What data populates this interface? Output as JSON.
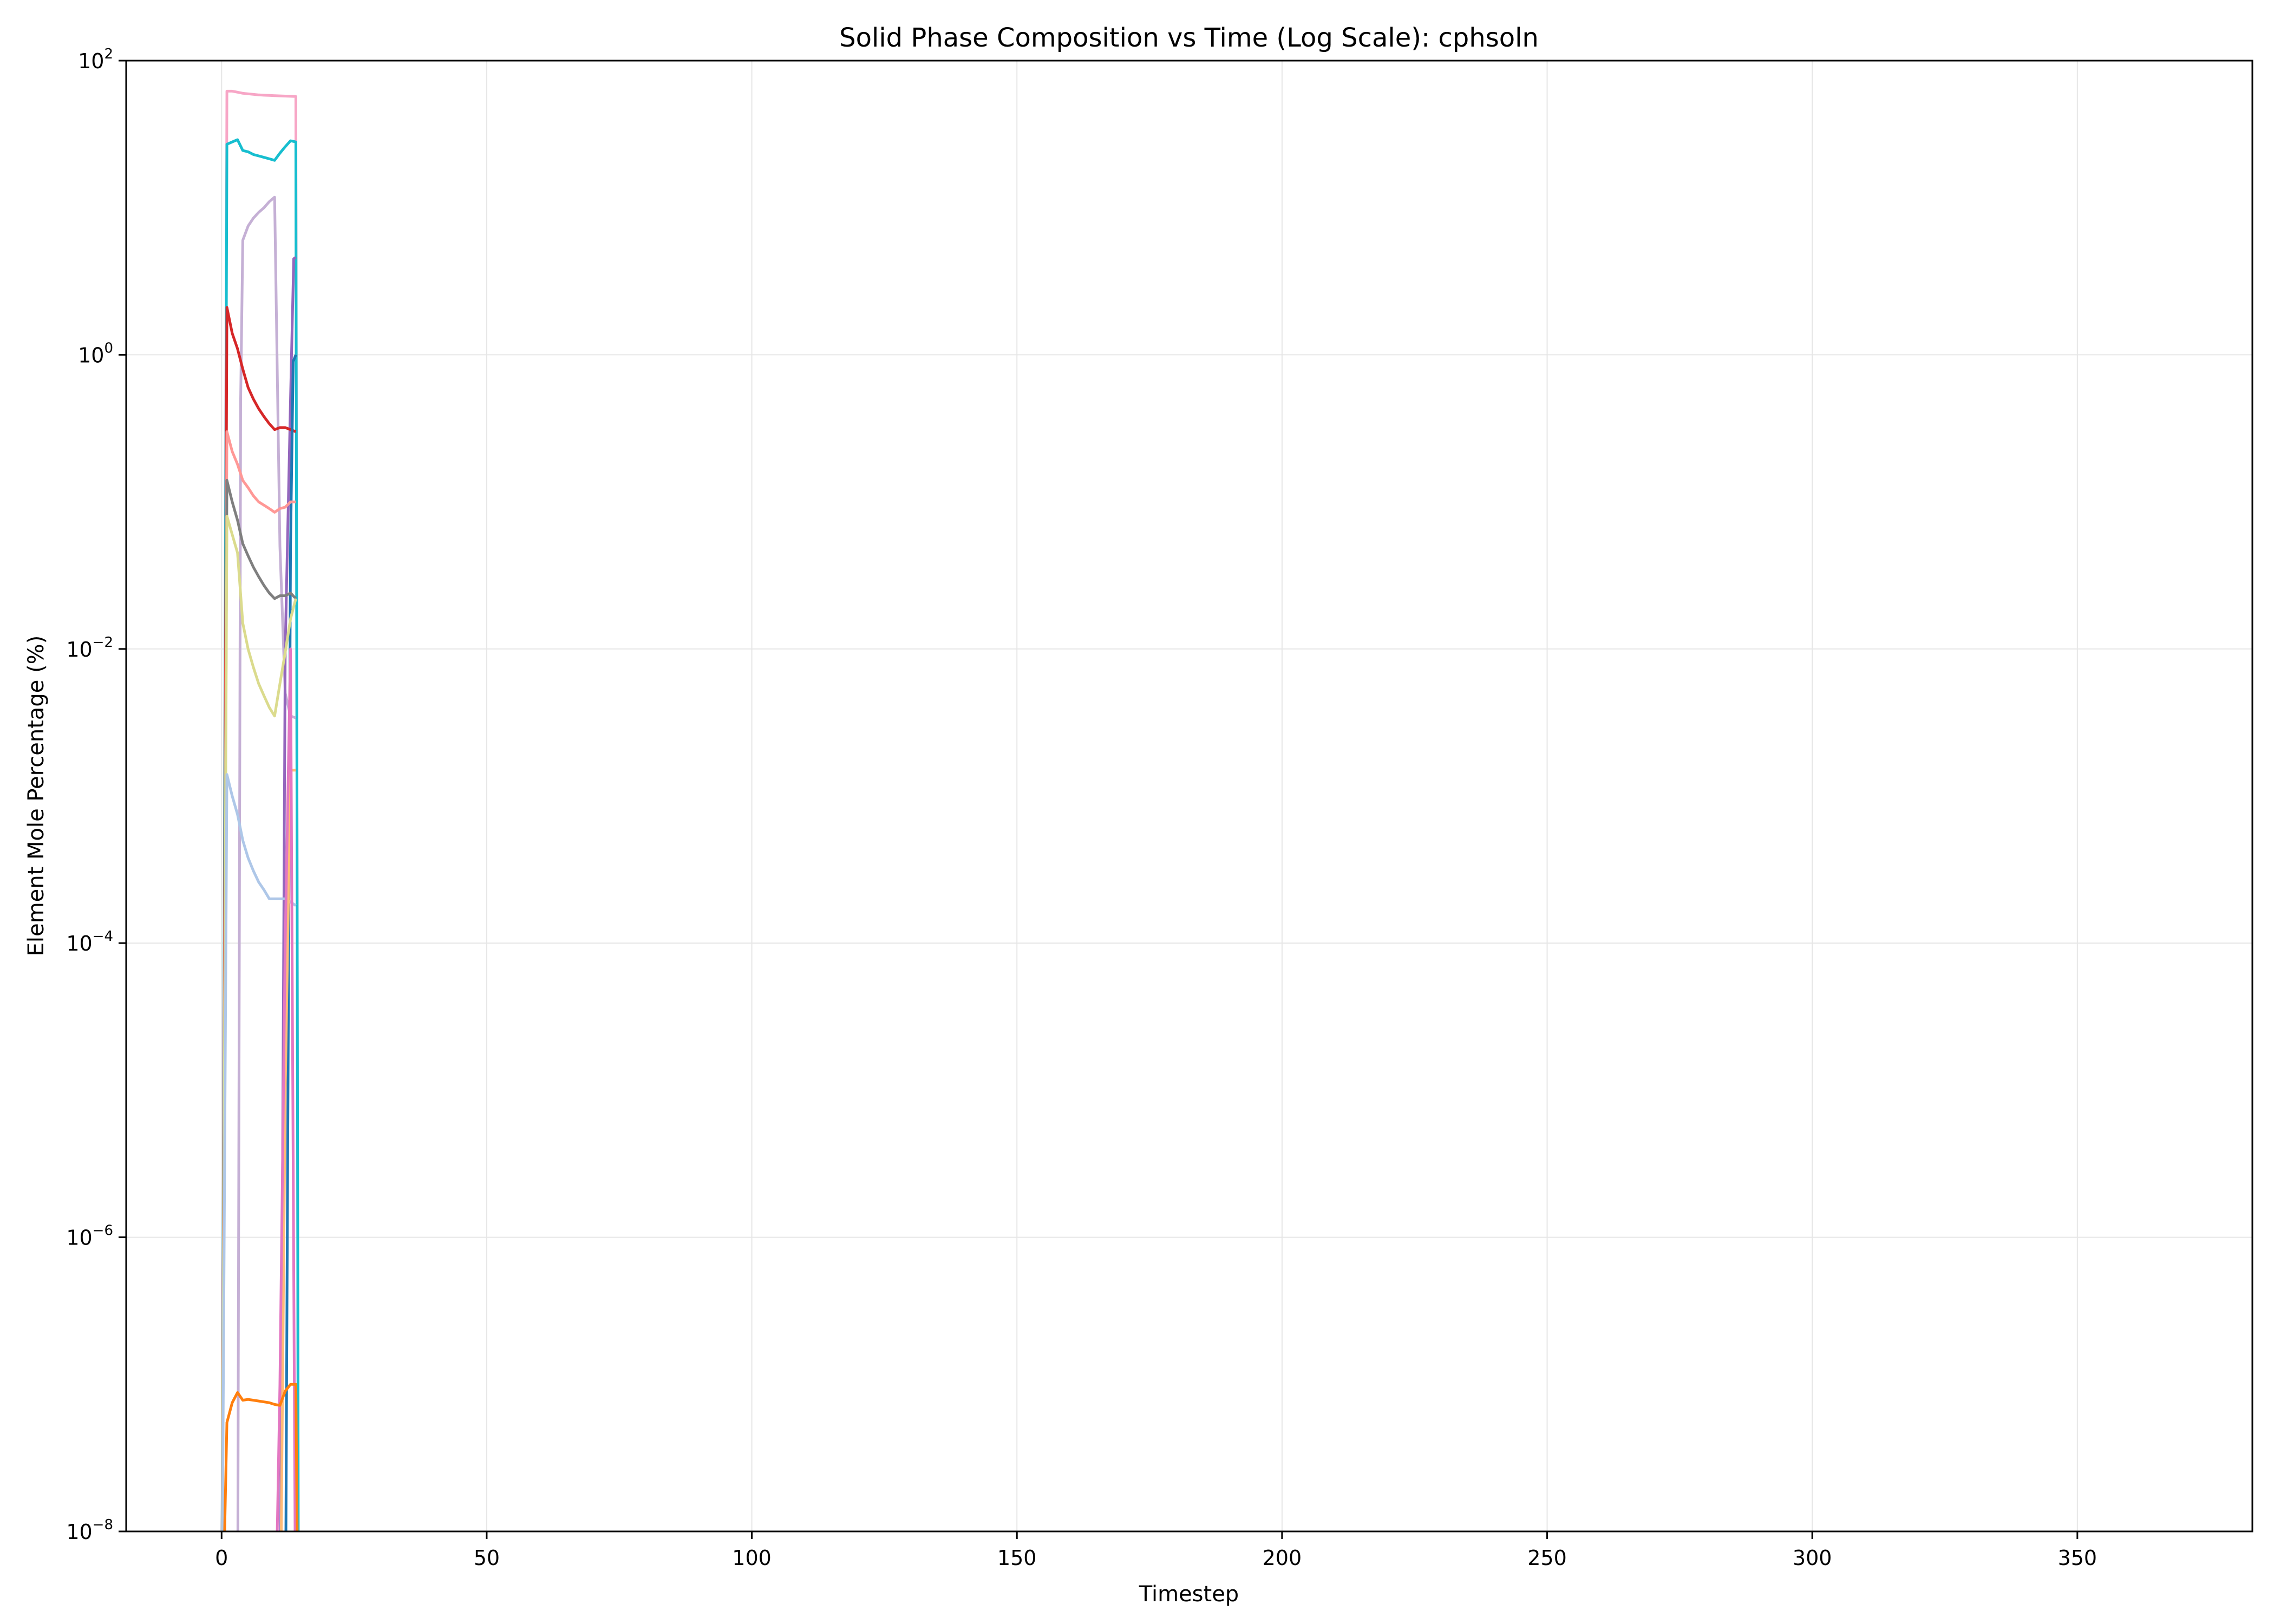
{
  "chart_data": {
    "type": "line",
    "title": "Solid Phase Composition vs Time (Log Scale): cphsoln",
    "xlabel": "Timestep",
    "ylabel": "Element Mole Percentage (%)",
    "xlim": [
      -18,
      383
    ],
    "ylim": [
      1e-08,
      100
    ],
    "yscale": "log",
    "grid": true,
    "x_ticks": [
      0,
      50,
      100,
      150,
      200,
      250,
      300,
      350
    ],
    "y_ticks": [
      -8,
      -6,
      -4,
      -2,
      0,
      2
    ],
    "series": [
      {
        "color": "#f7a6c6",
        "x": [
          0,
          1,
          2,
          3,
          4,
          5,
          6,
          7,
          8,
          9,
          10,
          11,
          12,
          13,
          14,
          14.5
        ],
        "y": [
          1e-09,
          62,
          62,
          61,
          60,
          59.5,
          59,
          58.5,
          58.2,
          58,
          57.8,
          57.6,
          57.4,
          57.2,
          57,
          1e-09
        ]
      },
      {
        "color": "#17becf",
        "x": [
          0,
          1,
          2,
          3,
          4,
          5,
          6,
          7,
          8,
          9,
          10,
          11,
          12,
          13,
          14,
          14.5
        ],
        "y": [
          1e-09,
          27,
          28,
          29,
          24.5,
          24,
          23,
          22.5,
          22,
          21.5,
          21,
          23.5,
          26,
          28.5,
          28,
          1e-09
        ]
      },
      {
        "color": "#c5b0d5",
        "x": [
          3,
          3.6,
          4,
          5,
          6,
          7,
          8,
          9,
          10,
          11,
          12,
          13,
          14
        ],
        "y": [
          1e-09,
          0.5,
          6,
          7.5,
          8.5,
          9.3,
          10,
          11,
          11.8,
          0.05,
          0.005,
          0.0035,
          0.0034
        ]
      },
      {
        "color": "#9467bd",
        "x": [
          11,
          12,
          13,
          13.6,
          14
        ],
        "y": [
          1e-09,
          0.01,
          0.5,
          4.5,
          4.6
        ]
      },
      {
        "color": "#d62728",
        "x": [
          0,
          1,
          2,
          3,
          4,
          5,
          6,
          7,
          8,
          9,
          10,
          11,
          12,
          13,
          14
        ],
        "y": [
          1e-09,
          2.1,
          1.4,
          1.1,
          0.8,
          0.6,
          0.5,
          0.43,
          0.38,
          0.34,
          0.31,
          0.32,
          0.32,
          0.31,
          0.3
        ]
      },
      {
        "color": "#1f77b4",
        "x": [
          12,
          13,
          13.5,
          14
        ],
        "y": [
          1e-09,
          0.05,
          0.9,
          1.0
        ]
      },
      {
        "color": "#ff9896",
        "x": [
          0,
          1,
          2,
          3,
          4,
          5,
          6,
          7,
          8,
          9,
          10,
          11,
          12,
          13,
          14
        ],
        "y": [
          1e-09,
          0.3,
          0.22,
          0.18,
          0.14,
          0.125,
          0.11,
          0.1,
          0.095,
          0.09,
          0.085,
          0.09,
          0.092,
          0.1,
          0.1
        ]
      },
      {
        "color": "#7f7f7f",
        "x": [
          0,
          1,
          2,
          3,
          4,
          5,
          6,
          7,
          8,
          9,
          10,
          11,
          12,
          13,
          14
        ],
        "y": [
          1e-09,
          0.14,
          0.1,
          0.075,
          0.052,
          0.043,
          0.036,
          0.031,
          0.027,
          0.024,
          0.022,
          0.023,
          0.023,
          0.024,
          0.022
        ]
      },
      {
        "color": "#dbdb8d",
        "x": [
          0,
          1,
          2,
          3,
          4,
          5,
          6,
          7,
          8,
          9,
          10,
          11,
          12,
          13,
          14
        ],
        "y": [
          1e-09,
          0.08,
          0.06,
          0.045,
          0.015,
          0.01,
          0.0075,
          0.0058,
          0.0048,
          0.004,
          0.0035,
          0.0058,
          0.0095,
          0.016,
          0.022
        ]
      },
      {
        "color": "#aec7e8",
        "x": [
          0,
          1,
          2,
          3,
          4,
          5,
          6,
          7,
          8,
          9,
          10,
          11,
          12,
          13,
          14
        ],
        "y": [
          1e-09,
          0.0014,
          0.001,
          0.00075,
          0.0005,
          0.00038,
          0.00031,
          0.00026,
          0.00023,
          0.0002,
          0.0002,
          0.0002,
          0.0002,
          0.00019,
          0.00018
        ]
      },
      {
        "color": "#ffbb78",
        "x": [
          11,
          12,
          13,
          14
        ],
        "y": [
          1e-09,
          1e-05,
          0.0015,
          0.0015
        ]
      },
      {
        "color": "#e377c2",
        "x": [
          10,
          11,
          12,
          13,
          14
        ],
        "y": [
          1e-09,
          1e-07,
          0.0001,
          0.01,
          1e-09
        ]
      },
      {
        "color": "#ff7f0e",
        "x": [
          0,
          1,
          2,
          3,
          4,
          5,
          6,
          7,
          8,
          9,
          10,
          11,
          12,
          13,
          14,
          14.5
        ],
        "y": [
          1e-09,
          5.5e-08,
          7.5e-08,
          8.8e-08,
          7.8e-08,
          7.9e-08,
          7.8e-08,
          7.7e-08,
          7.6e-08,
          7.5e-08,
          7.3e-08,
          7.2e-08,
          9e-08,
          1e-07,
          1e-07,
          1e-09
        ]
      }
    ]
  }
}
